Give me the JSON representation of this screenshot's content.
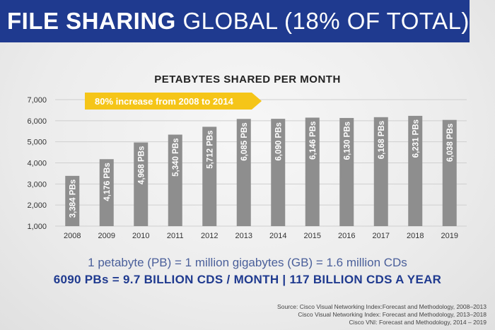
{
  "header": {
    "title_bold": "FILE SHARING",
    "title_light": "GLOBAL (18% OF TOTAL)"
  },
  "callout": "80% increase from 2008 to 2014",
  "notes": {
    "line1": "1 petabyte (PB) = 1 million gigabytes (GB) = 1.6 million CDs",
    "line2": "6090 PBs = 9.7 BILLION CDS / MONTH | 117 BILLION CDS A YEAR"
  },
  "sources": [
    "Source: Cisco Visual Networking Index:Forecast and Methodology, 2008–2013",
    "Cisco Visual Networking Index: Forecast and Methodology, 2013–2018",
    "Cisco VNI: Forecast and Methodology, 2014 – 2019"
  ],
  "colors": {
    "header": "#1f3a8f",
    "bar": "#8e8e8e",
    "callout": "#f5c518",
    "note_bold": "#1f3a8f",
    "note_light": "#4a5f9a"
  },
  "chart_data": {
    "type": "bar",
    "title": "PETABYTES SHARED PER MONTH",
    "categories": [
      "2008",
      "2009",
      "2010",
      "2011",
      "2012",
      "2013",
      "2014",
      "2015",
      "2016",
      "2017",
      "2018",
      "2019"
    ],
    "values": [
      3384,
      4176,
      4968,
      5340,
      5712,
      6085,
      6090,
      6146,
      6130,
      6168,
      6231,
      6038
    ],
    "data_labels": [
      "3,384 PBs",
      "4,176 PBs",
      "4,968 PBs",
      "5,340 PBs",
      "5,712 PBs",
      "6,085 PBs",
      "6,090 PBs",
      "6,146 PBs",
      "6,130 PBs",
      "6,168 PBs",
      "6,231 PBs",
      "6,038 PBs"
    ],
    "ylim": [
      1000,
      7000
    ],
    "yticks": [
      1000,
      2000,
      3000,
      4000,
      5000,
      6000,
      7000
    ],
    "ytick_labels": [
      "1,000",
      "2,000",
      "3,000",
      "4,000",
      "5,000",
      "6,000",
      "7,000"
    ],
    "xlabel": "",
    "ylabel": "",
    "grid": true,
    "legend": "none"
  }
}
